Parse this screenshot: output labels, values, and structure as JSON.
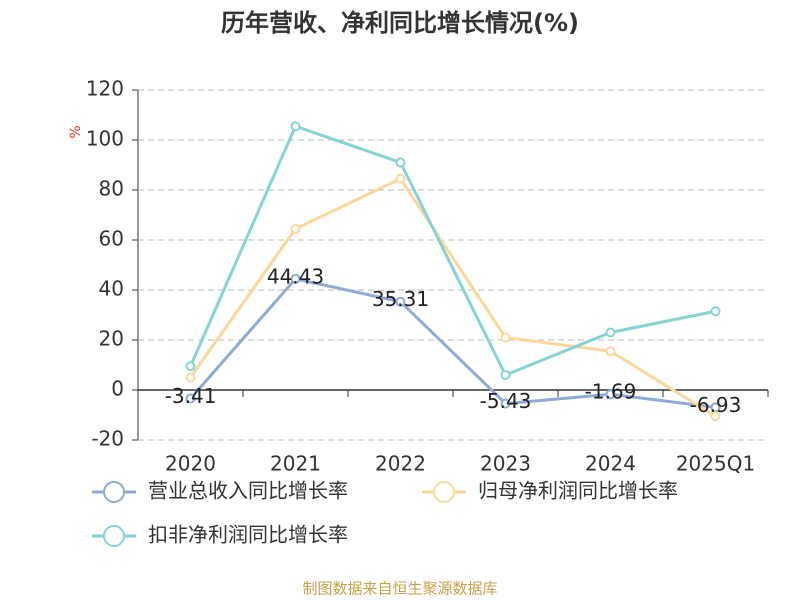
{
  "chart_data": {
    "type": "line",
    "title": "历年营收、净利同比增长情况(%)",
    "y_label": "%",
    "categories": [
      "2020",
      "2021",
      "2022",
      "2023",
      "2024",
      "2025Q1"
    ],
    "series": [
      {
        "name": "营业总收入同比增长率",
        "color": "#8eaad6",
        "values": [
          -3.41,
          44.43,
          35.31,
          -5.43,
          -1.69,
          -6.93
        ],
        "show_labels": true
      },
      {
        "name": "归母净利润同比增长率",
        "color": "#fbd89a",
        "values": [
          5,
          64.5,
          84.5,
          21,
          15.5,
          -10.5
        ],
        "show_labels": false
      },
      {
        "name": "扣非净利润同比增长率",
        "color": "#86d3d6",
        "values": [
          9.5,
          105.5,
          91,
          6,
          23,
          31.5
        ],
        "show_labels": false
      }
    ],
    "ylim": [
      -20,
      120
    ],
    "yticks": [
      -20,
      0,
      20,
      40,
      60,
      80,
      100,
      120
    ],
    "grid": true,
    "source": "制图数据来自恒生聚源数据库"
  }
}
